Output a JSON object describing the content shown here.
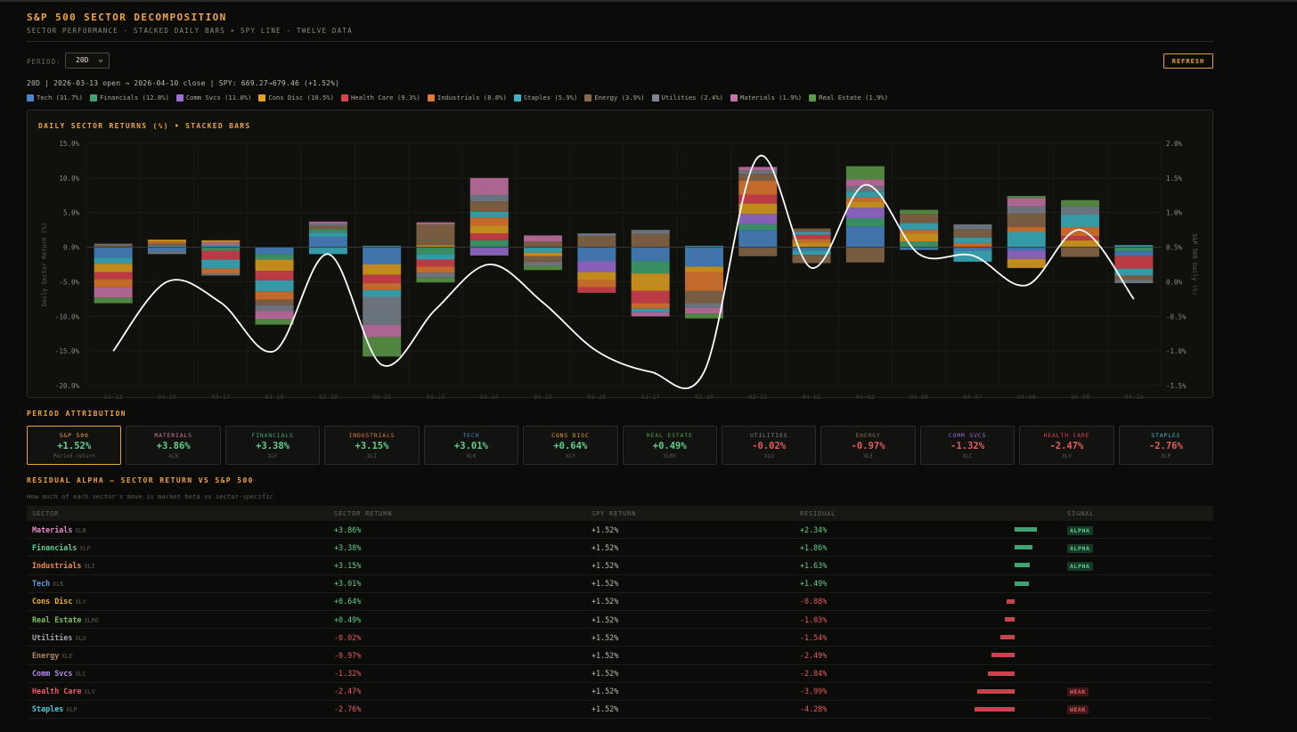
{
  "header": {
    "title": "S&P 500 SECTOR DECOMPOSITION",
    "subtitle": "SECTOR PERFORMANCE · STACKED DAILY BARS + SPY LINE · TWELVE DATA"
  },
  "controls": {
    "period_label": "PERIOD:",
    "period_value": "20D",
    "refresh_label": "REFRESH"
  },
  "info_line": "20D | 2026-03-13 open → 2026-04-10 close | SPY: 669.27→679.46 (+1.52%)",
  "legend": [
    {
      "label": "Tech (31.7%)",
      "color": "#4a86c8"
    },
    {
      "label": "Financials (12.8%)",
      "color": "#3fa373"
    },
    {
      "label": "Comm Svcs (11.0%)",
      "color": "#9b6fd6"
    },
    {
      "label": "Cons Disc (10.5%)",
      "color": "#e0a020"
    },
    {
      "label": "Health Care (9.3%)",
      "color": "#d9434f"
    },
    {
      "label": "Industrials (8.8%)",
      "color": "#e07a33"
    },
    {
      "label": "Staples (5.9%)",
      "color": "#3cb2c2"
    },
    {
      "label": "Energy (3.9%)",
      "color": "#8a6a4c"
    },
    {
      "label": "Utilities (2.4%)",
      "color": "#7a8590"
    },
    {
      "label": "Materials (1.9%)",
      "color": "#c873a8"
    },
    {
      "label": "Real Estate (1.9%)",
      "color": "#5a9a48"
    }
  ],
  "chart_data": {
    "type": "bar",
    "title": "DAILY SECTOR RETURNS (%) • STACKED BARS",
    "ylabel": "Daily Sector Return (%)",
    "y2label": "S&P 500 Daily (%)",
    "ylim": [
      -20,
      15
    ],
    "y2lim": [
      -1.5,
      2.0
    ],
    "yticks": [
      "15.0%",
      "10.0%",
      "5.0%",
      "0.0%",
      "-5.0%",
      "-10.0%",
      "-15.0%",
      "-20.0%"
    ],
    "y2ticks": [
      "2.0%",
      "1.5%",
      "1.0%",
      "0.5%",
      "0.0%",
      "-0.5%",
      "-1.0%",
      "-1.5%"
    ],
    "categories": [
      "03-13",
      "03-16",
      "03-17",
      "03-18",
      "03-19",
      "03-20",
      "03-23",
      "03-24",
      "03-25",
      "03-26",
      "03-27",
      "03-30",
      "03-31",
      "04-01",
      "04-02",
      "04-06",
      "04-07",
      "04-08",
      "04-09",
      "04-10"
    ],
    "series_order": [
      "Tech",
      "Financials",
      "Comm Svcs",
      "Cons Disc",
      "Health Care",
      "Industrials",
      "Staples",
      "Energy",
      "Utilities",
      "Materials",
      "Real Estate"
    ],
    "stack_pos": [
      [
        [
          "Energy",
          0.3
        ],
        [
          "Utilities",
          0.2
        ]
      ],
      [
        [
          "Staples",
          0.2
        ],
        [
          "Energy",
          0.3
        ],
        [
          "Industrials",
          0.3
        ],
        [
          "Cons Disc",
          0.3
        ]
      ],
      [
        [
          "Staples",
          0.3
        ],
        [
          "Materials",
          0.4
        ],
        [
          "Cons Disc",
          0.3
        ]
      ],
      [],
      [
        [
          "Tech",
          1.5
        ],
        [
          "Staples",
          0.6
        ],
        [
          "Financials",
          0.5
        ],
        [
          "Energy",
          0.5
        ],
        [
          "Utilities",
          0.3
        ],
        [
          "Materials",
          0.3
        ]
      ],
      [
        [
          "Staples",
          0.2
        ]
      ],
      [
        [
          "Cons Disc",
          0.3
        ],
        [
          "Energy",
          3.0
        ],
        [
          "Materials",
          0.3
        ]
      ],
      [
        [
          "Financials",
          1.0
        ],
        [
          "Health Care",
          1.0
        ],
        [
          "Cons Disc",
          1.1
        ],
        [
          "Industrials",
          1.2
        ],
        [
          "Staples",
          0.8
        ],
        [
          "Energy",
          1.5
        ],
        [
          "Utilities",
          1.0
        ],
        [
          "Materials",
          2.4
        ]
      ],
      [
        [
          "Energy",
          0.8
        ],
        [
          "Materials",
          0.9
        ]
      ],
      [
        [
          "Energy",
          1.6
        ],
        [
          "Utilities",
          0.4
        ]
      ],
      [
        [
          "Energy",
          1.9
        ],
        [
          "Utilities",
          0.6
        ]
      ],
      [
        [
          "Staples",
          0.2
        ]
      ],
      [
        [
          "Tech",
          2.5
        ],
        [
          "Financials",
          0.8
        ],
        [
          "Comm Svcs",
          1.5
        ],
        [
          "Cons Disc",
          1.5
        ],
        [
          "Health Care",
          1.3
        ],
        [
          "Industrials",
          2.0
        ],
        [
          "Energy",
          1.0
        ],
        [
          "Utilities",
          0.5
        ],
        [
          "Materials",
          0.5
        ]
      ],
      [
        [
          "Cons Disc",
          0.7
        ],
        [
          "Industrials",
          0.5
        ],
        [
          "Health Care",
          0.6
        ],
        [
          "Staples",
          0.4
        ],
        [
          "Energy",
          0.5
        ]
      ],
      [
        [
          "Tech",
          3.0
        ],
        [
          "Financials",
          1.2
        ],
        [
          "Comm Svcs",
          1.5
        ],
        [
          "Cons Disc",
          0.9
        ],
        [
          "Industrials",
          0.6
        ],
        [
          "Staples",
          0.8
        ],
        [
          "Utilities",
          0.8
        ],
        [
          "Materials",
          1.0
        ],
        [
          "Real Estate",
          1.9
        ]
      ],
      [
        [
          "Financials",
          0.8
        ],
        [
          "Cons Disc",
          1.2
        ],
        [
          "Industrials",
          0.5
        ],
        [
          "Staples",
          1.0
        ],
        [
          "Energy",
          1.3
        ],
        [
          "Real Estate",
          0.6
        ]
      ],
      [
        [
          "Industrials",
          0.6
        ],
        [
          "Staples",
          0.8
        ],
        [
          "Energy",
          1.2
        ],
        [
          "Utilities",
          0.7
        ]
      ],
      [
        [
          "Staples",
          2.2
        ],
        [
          "Industrials",
          0.7
        ],
        [
          "Energy",
          2.0
        ],
        [
          "Utilities",
          1.0
        ],
        [
          "Materials",
          1.2
        ],
        [
          "Real Estate",
          0.3
        ]
      ],
      [
        [
          "Cons Disc",
          1.0
        ],
        [
          "Health Care",
          0.6
        ],
        [
          "Industrials",
          1.3
        ],
        [
          "Staples",
          1.8
        ],
        [
          "Utilities",
          1.2
        ],
        [
          "Real Estate",
          0.9
        ]
      ],
      [
        [
          "Staples",
          0.3
        ]
      ]
    ],
    "stack_neg": [
      [
        [
          "Tech",
          1.5
        ],
        [
          "Staples",
          0.9
        ],
        [
          "Cons Disc",
          1.2
        ],
        [
          "Health Care",
          1.0
        ],
        [
          "Industrials",
          1.2
        ],
        [
          "Materials",
          1.5
        ],
        [
          "Real Estate",
          0.8
        ]
      ],
      [
        [
          "Tech",
          0.6
        ],
        [
          "Utilities",
          0.4
        ]
      ],
      [
        [
          "Financials",
          0.5
        ],
        [
          "Health Care",
          1.3
        ],
        [
          "Staples",
          1.3
        ],
        [
          "Industrials",
          0.7
        ],
        [
          "Utilities",
          0.3
        ]
      ],
      [
        [
          "Tech",
          1.0
        ],
        [
          "Financials",
          0.8
        ],
        [
          "Cons Disc",
          1.6
        ],
        [
          "Health Care",
          1.4
        ],
        [
          "Staples",
          1.6
        ],
        [
          "Industrials",
          1.2
        ],
        [
          "Energy",
          0.8
        ],
        [
          "Utilities",
          0.8
        ],
        [
          "Materials",
          1.2
        ],
        [
          "Real Estate",
          0.8
        ]
      ],
      [
        [
          "Staples",
          1.0
        ]
      ],
      [
        [
          "Tech",
          2.5
        ],
        [
          "Cons Disc",
          1.5
        ],
        [
          "Health Care",
          1.2
        ],
        [
          "Industrials",
          1.0
        ],
        [
          "Staples",
          1.0
        ],
        [
          "Utilities",
          4.0
        ],
        [
          "Materials",
          1.8
        ],
        [
          "Real Estate",
          2.8
        ]
      ],
      [
        [
          "Financials",
          1.0
        ],
        [
          "Staples",
          0.8
        ],
        [
          "Health Care",
          1.0
        ],
        [
          "Industrials",
          0.9
        ],
        [
          "Utilities",
          0.7
        ],
        [
          "Real Estate",
          0.7
        ]
      ],
      [
        [
          "Comm Svcs",
          1.2
        ]
      ],
      [
        [
          "Staples",
          0.8
        ],
        [
          "Cons Disc",
          0.5
        ],
        [
          "Energy",
          0.8
        ],
        [
          "Utilities",
          0.6
        ],
        [
          "Real Estate",
          0.6
        ]
      ],
      [
        [
          "Tech",
          2.0
        ],
        [
          "Comm Svcs",
          1.6
        ],
        [
          "Cons Disc",
          1.2
        ],
        [
          "Industrials",
          1.0
        ],
        [
          "Health Care",
          0.8
        ]
      ],
      [
        [
          "Tech",
          2.0
        ],
        [
          "Financials",
          1.8
        ],
        [
          "Cons Disc",
          2.5
        ],
        [
          "Health Care",
          1.8
        ],
        [
          "Industrials",
          0.8
        ],
        [
          "Staples",
          0.5
        ],
        [
          "Materials",
          0.6
        ]
      ],
      [
        [
          "Tech",
          2.8
        ],
        [
          "Cons Disc",
          0.8
        ],
        [
          "Industrials",
          2.7
        ],
        [
          "Energy",
          1.8
        ],
        [
          "Utilities",
          0.7
        ],
        [
          "Materials",
          0.8
        ],
        [
          "Real Estate",
          0.7
        ]
      ],
      [
        [
          "Energy",
          1.3
        ]
      ],
      [
        [
          "Tech",
          0.5
        ],
        [
          "Staples",
          0.6
        ],
        [
          "Energy",
          1.2
        ]
      ],
      [
        [
          "Energy",
          2.2
        ]
      ],
      [
        [
          "Tech",
          0.4
        ]
      ],
      [
        [
          "Tech",
          0.5
        ],
        [
          "Staples",
          1.6
        ]
      ],
      [
        [
          "Tech",
          0.5
        ],
        [
          "Comm Svcs",
          1.2
        ],
        [
          "Cons Disc",
          1.3
        ]
      ],
      [
        [
          "Energy",
          1.4
        ]
      ],
      [
        [
          "Financials",
          0.6
        ],
        [
          "Tech",
          0.7
        ],
        [
          "Health Care",
          1.8
        ],
        [
          "Staples",
          1.0
        ],
        [
          "Energy",
          0.6
        ],
        [
          "Utilities",
          0.5
        ]
      ]
    ],
    "spy_line": {
      "name": "S&P 500",
      "values": [
        -1.0,
        0.0,
        -0.3,
        -1.0,
        0.4,
        -1.2,
        -0.4,
        0.25,
        -0.3,
        -1.0,
        -1.3,
        -1.3,
        1.8,
        0.2,
        1.4,
        0.4,
        0.38,
        -0.05,
        0.75,
        -0.25
      ]
    }
  },
  "attribution": {
    "section_title": "PERIOD ATTRIBUTION",
    "cards": [
      {
        "label": "S&P 500",
        "value": "+1.52%",
        "sub": "Period return",
        "color": "#f0a43a",
        "sign": "pos"
      },
      {
        "label": "MATERIALS",
        "value": "+3.86%",
        "sub": "XLB",
        "color": "#c873a8",
        "sign": "pos"
      },
      {
        "label": "FINANCIALS",
        "value": "+3.38%",
        "sub": "XLF",
        "color": "#3fa373",
        "sign": "pos"
      },
      {
        "label": "INDUSTRIALS",
        "value": "+3.15%",
        "sub": "XLI",
        "color": "#e07a33",
        "sign": "pos"
      },
      {
        "label": "TECH",
        "value": "+3.01%",
        "sub": "XLK",
        "color": "#4a86c8",
        "sign": "pos"
      },
      {
        "label": "CONS DISC",
        "value": "+0.64%",
        "sub": "XLY",
        "color": "#e0a020",
        "sign": "pos"
      },
      {
        "label": "REAL ESTATE",
        "value": "+0.49%",
        "sub": "XLRE",
        "color": "#5a9a48",
        "sign": "pos"
      },
      {
        "label": "UTILITIES",
        "value": "-0.02%",
        "sub": "XLU",
        "color": "#7a8590",
        "sign": "neg"
      },
      {
        "label": "ENERGY",
        "value": "-0.97%",
        "sub": "XLE",
        "color": "#8a6a4c",
        "sign": "neg"
      },
      {
        "label": "COMM SVCS",
        "value": "-1.32%",
        "sub": "XLC",
        "color": "#9b6fd6",
        "sign": "neg"
      },
      {
        "label": "HEALTH CARE",
        "value": "-2.47%",
        "sub": "XLV",
        "color": "#d9434f",
        "sign": "neg"
      },
      {
        "label": "STAPLES",
        "value": "-2.76%",
        "sub": "XLP",
        "color": "#3cb2c2",
        "sign": "neg"
      }
    ]
  },
  "residual": {
    "section_title": "RESIDUAL ALPHA — SECTOR RETURN VS S&P 500",
    "subtitle": "How much of each sector's move is market beta vs sector-specific",
    "headers": {
      "sector": "SECTOR",
      "sector_return": "SECTOR RETURN",
      "spy_return": "SPY RETURN",
      "residual": "RESIDUAL",
      "signal": "SIGNAL"
    },
    "rows": [
      {
        "name": "Materials",
        "ticker": "XLB",
        "color": "#e58ac8",
        "sector_return": "+3.86%",
        "spy_return": "+1.52%",
        "residual": "+2.34%",
        "resid_val": 2.34,
        "signal": "ALPHA"
      },
      {
        "name": "Financials",
        "ticker": "XLF",
        "color": "#5fd08a",
        "sector_return": "+3.38%",
        "spy_return": "+1.52%",
        "residual": "+1.86%",
        "resid_val": 1.86,
        "signal": "ALPHA"
      },
      {
        "name": "Industrials",
        "ticker": "XLI",
        "color": "#f08a3e",
        "sector_return": "+3.15%",
        "spy_return": "+1.52%",
        "residual": "+1.63%",
        "resid_val": 1.63,
        "signal": "ALPHA"
      },
      {
        "name": "Tech",
        "ticker": "XLK",
        "color": "#5f9de0",
        "sector_return": "+3.01%",
        "spy_return": "+1.52%",
        "residual": "+1.49%",
        "resid_val": 1.49,
        "signal": ""
      },
      {
        "name": "Cons Disc",
        "ticker": "XLY",
        "color": "#f0b030",
        "sector_return": "+0.64%",
        "spy_return": "+1.52%",
        "residual": "-0.88%",
        "resid_val": -0.88,
        "signal": ""
      },
      {
        "name": "Real Estate",
        "ticker": "XLRE",
        "color": "#7ac060",
        "sector_return": "+0.49%",
        "spy_return": "+1.52%",
        "residual": "-1.03%",
        "resid_val": -1.03,
        "signal": ""
      },
      {
        "name": "Utilities",
        "ticker": "XLU",
        "color": "#a0a8b0",
        "sector_return": "-0.02%",
        "spy_return": "+1.52%",
        "residual": "-1.54%",
        "resid_val": -1.54,
        "signal": ""
      },
      {
        "name": "Energy",
        "ticker": "XLE",
        "color": "#b08a60",
        "sector_return": "-0.97%",
        "spy_return": "+1.52%",
        "residual": "-2.49%",
        "resid_val": -2.49,
        "signal": ""
      },
      {
        "name": "Comm Svcs",
        "ticker": "XLC",
        "color": "#b48ae8",
        "sector_return": "-1.32%",
        "spy_return": "+1.52%",
        "residual": "-2.84%",
        "resid_val": -2.84,
        "signal": ""
      },
      {
        "name": "Health Care",
        "ticker": "XLV",
        "color": "#f05a64",
        "sector_return": "-2.47%",
        "spy_return": "+1.52%",
        "residual": "-3.99%",
        "resid_val": -3.99,
        "signal": "WEAK"
      },
      {
        "name": "Staples",
        "ticker": "XLP",
        "color": "#4cc8d8",
        "sector_return": "-2.76%",
        "spy_return": "+1.52%",
        "residual": "-4.28%",
        "resid_val": -4.28,
        "signal": "WEAK"
      }
    ]
  }
}
